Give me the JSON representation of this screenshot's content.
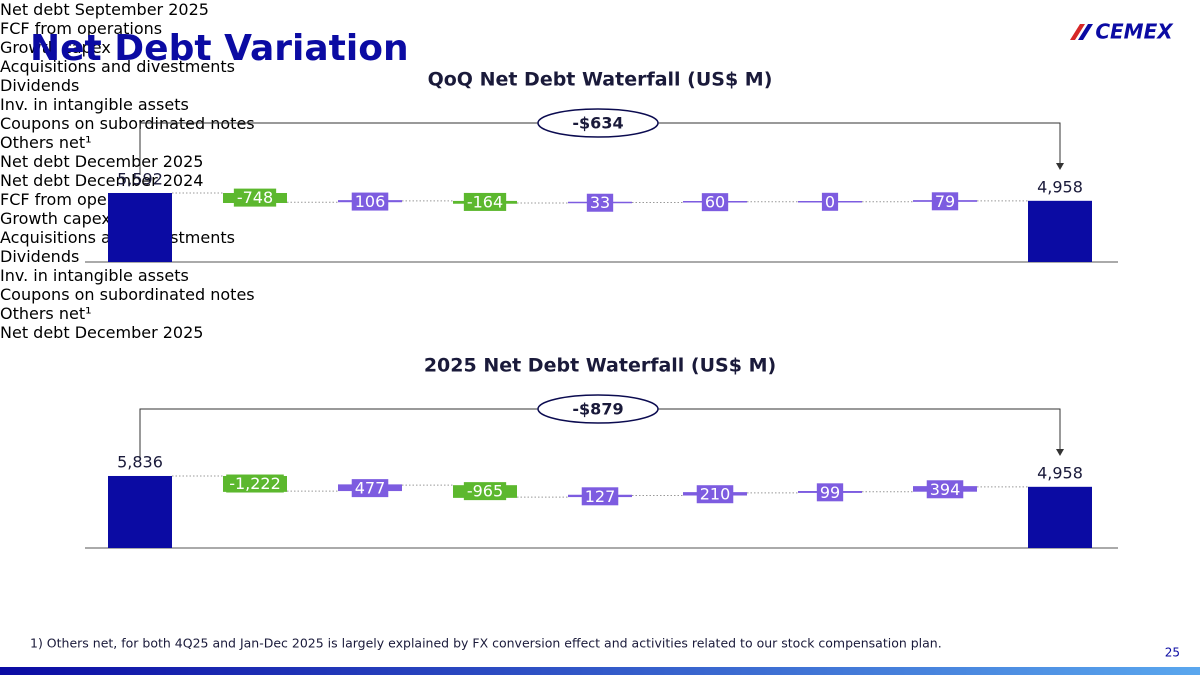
{
  "header": {
    "title": "Net Debt Variation",
    "logo": "CEMEX"
  },
  "chart_data": [
    {
      "type": "waterfall",
      "title": "QoQ Net Debt Waterfall (US$ M)",
      "annotation": "-$634",
      "categories": [
        "Net debt\nSeptember\n2025",
        "FCF from\noperations",
        "Growth capex",
        "Acquisitions and\ndivestments",
        "Dividends",
        "Inv. in intangible\nassets",
        "Coupons on\nsubordinated\nnotes",
        "Others net¹",
        "Net debt\nDecember\n2025"
      ],
      "measure": [
        "total",
        "relative",
        "relative",
        "relative",
        "relative",
        "relative",
        "relative",
        "relative",
        "total"
      ],
      "values": [
        5592,
        -748,
        106,
        -164,
        33,
        60,
        0,
        79,
        4958
      ],
      "value_labels": [
        "5,592",
        "-748",
        "106",
        "-164",
        "33",
        "60",
        "0",
        "79",
        "4,958"
      ],
      "colors": {
        "total": "#0b0ba3",
        "decrease": "#5cb82e",
        "increase": "#7d5ce0"
      }
    },
    {
      "type": "waterfall",
      "title": "2025 Net Debt Waterfall (US$ M)",
      "annotation": "-$879",
      "categories": [
        "Net debt\nDecember\n2024",
        "FCF from\noperations",
        "Growth capex",
        "Acquisitions and\ndivestments",
        "Dividends",
        "Inv. in intangible\nassets",
        "Coupons on\nsubordinated\nnotes",
        "Others net¹",
        "Net debt\nDecember\n2025"
      ],
      "measure": [
        "total",
        "relative",
        "relative",
        "relative",
        "relative",
        "relative",
        "relative",
        "relative",
        "total"
      ],
      "values": [
        5836,
        -1222,
        477,
        -965,
        127,
        210,
        99,
        394,
        4958
      ],
      "value_labels": [
        "5,836",
        "-1,222",
        "477",
        "-965",
        "127",
        "210",
        "99",
        "394",
        "4,958"
      ],
      "colors": {
        "total": "#0b0ba3",
        "decrease": "#5cb82e",
        "increase": "#7d5ce0"
      }
    }
  ],
  "footnote": "1) Others net, for both 4Q25 and Jan-Dec 2025 is largely explained by FX conversion effect and activities related to our stock compensation plan.",
  "page_number": "25"
}
